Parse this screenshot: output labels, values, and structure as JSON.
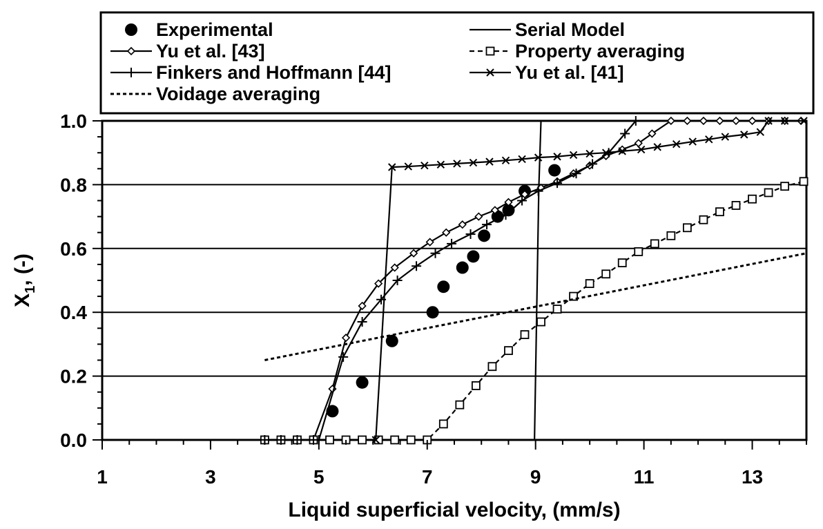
{
  "chart_data": {
    "type": "line",
    "xlabel": "Liquid superficial velocity, (mm/s)",
    "ylabel": "X",
    "ylabel_subscript": "1",
    "ylabel_suffix": ", (-)",
    "xlim": [
      1,
      14
    ],
    "ylim": [
      0,
      1
    ],
    "xticks": [
      "1",
      "3",
      "5",
      "7",
      "9",
      "11",
      "13"
    ],
    "yticks": [
      "0.0",
      "0.2",
      "0.4",
      "0.6",
      "0.8",
      "1.0"
    ],
    "grid": "horizontal major lines",
    "legend_position": "top, boxed, two columns",
    "series": [
      {
        "name": "Experimental",
        "style": "markers-only",
        "marker": "filled-circle",
        "x": [
          5.25,
          5.8,
          6.35,
          7.1,
          7.3,
          7.65,
          7.85,
          8.05,
          8.3,
          8.5,
          8.8,
          9.35
        ],
        "y": [
          0.09,
          0.18,
          0.31,
          0.4,
          0.48,
          0.54,
          0.575,
          0.64,
          0.7,
          0.72,
          0.78,
          0.845
        ]
      },
      {
        "name": "Serial Model",
        "style": "solid",
        "marker": "none",
        "x": [
          4.0,
          8.98,
          9.06,
          9.1,
          14.0
        ],
        "y": [
          0.0,
          0.0,
          0.79,
          1.0,
          1.0
        ]
      },
      {
        "name": "Yu et al. [43]",
        "style": "solid",
        "marker": "diamond",
        "x": [
          4.0,
          4.3,
          4.6,
          4.9,
          5.25,
          5.5,
          5.8,
          6.1,
          6.4,
          6.75,
          7.05,
          7.35,
          7.65,
          7.95,
          8.25,
          8.5,
          8.8,
          9.1,
          9.4,
          9.7,
          10.0,
          10.3,
          10.6,
          10.9,
          11.15,
          11.5,
          11.8,
          12.1,
          12.4,
          12.7,
          13.0,
          13.3,
          13.6,
          13.9
        ],
        "y": [
          0.0,
          0.0,
          0.0,
          0.0,
          0.16,
          0.32,
          0.42,
          0.49,
          0.54,
          0.585,
          0.62,
          0.65,
          0.675,
          0.7,
          0.72,
          0.745,
          0.77,
          0.79,
          0.81,
          0.835,
          0.86,
          0.89,
          0.91,
          0.93,
          0.96,
          1.0,
          1.0,
          1.0,
          1.0,
          1.0,
          1.0,
          1.0,
          1.0,
          1.0
        ]
      },
      {
        "name": "Property averaging",
        "style": "dashed",
        "marker": "open-square",
        "x": [
          4.0,
          4.3,
          4.6,
          4.9,
          5.2,
          5.5,
          5.8,
          6.1,
          6.4,
          6.7,
          7.0,
          7.3,
          7.6,
          7.9,
          8.2,
          8.5,
          8.8,
          9.1,
          9.4,
          9.7,
          10.0,
          10.3,
          10.6,
          10.9,
          11.2,
          11.5,
          11.8,
          12.1,
          12.4,
          12.7,
          13.0,
          13.3,
          13.6,
          13.95
        ],
        "y": [
          0.0,
          0.0,
          0.0,
          0.0,
          0.0,
          0.0,
          0.0,
          0.0,
          0.0,
          0.0,
          0.0,
          0.05,
          0.11,
          0.17,
          0.23,
          0.28,
          0.33,
          0.37,
          0.41,
          0.45,
          0.49,
          0.52,
          0.555,
          0.59,
          0.615,
          0.64,
          0.665,
          0.69,
          0.715,
          0.735,
          0.755,
          0.775,
          0.795,
          0.81
        ]
      },
      {
        "name": "Finkers and Hoffmann [44]",
        "style": "solid",
        "marker": "plus",
        "x": [
          4.0,
          4.3,
          4.6,
          4.9,
          5.0,
          5.45,
          5.8,
          6.15,
          6.45,
          6.8,
          7.15,
          7.45,
          7.8,
          8.1,
          8.45,
          8.75,
          9.05,
          9.4,
          9.75,
          10.05,
          10.35,
          10.65,
          10.85
        ],
        "y": [
          0.0,
          0.0,
          0.0,
          0.0,
          0.0,
          0.26,
          0.37,
          0.44,
          0.5,
          0.545,
          0.585,
          0.615,
          0.645,
          0.675,
          0.705,
          0.75,
          0.78,
          0.805,
          0.835,
          0.865,
          0.9,
          0.96,
          1.0
        ]
      },
      {
        "name": "Yu et al. [41]",
        "style": "solid",
        "marker": "x",
        "x": [
          6.05,
          6.35,
          6.65,
          6.95,
          7.25,
          7.55,
          7.85,
          8.15,
          8.45,
          8.75,
          9.05,
          9.4,
          9.7,
          10.0,
          10.3,
          10.6,
          10.95,
          11.25,
          11.6,
          11.9,
          12.2,
          12.5,
          12.85,
          13.15,
          13.3,
          13.6,
          13.95
        ],
        "y": [
          0.0,
          0.855,
          0.857,
          0.86,
          0.863,
          0.866,
          0.869,
          0.872,
          0.876,
          0.88,
          0.885,
          0.888,
          0.893,
          0.897,
          0.9,
          0.905,
          0.91,
          0.918,
          0.927,
          0.935,
          0.942,
          0.95,
          0.957,
          0.965,
          1.0,
          1.0,
          1.0
        ]
      },
      {
        "name": "Voidage averaging",
        "style": "dotted",
        "marker": "none",
        "x": [
          4.0,
          14.0
        ],
        "y": [
          0.25,
          0.585
        ]
      }
    ]
  }
}
